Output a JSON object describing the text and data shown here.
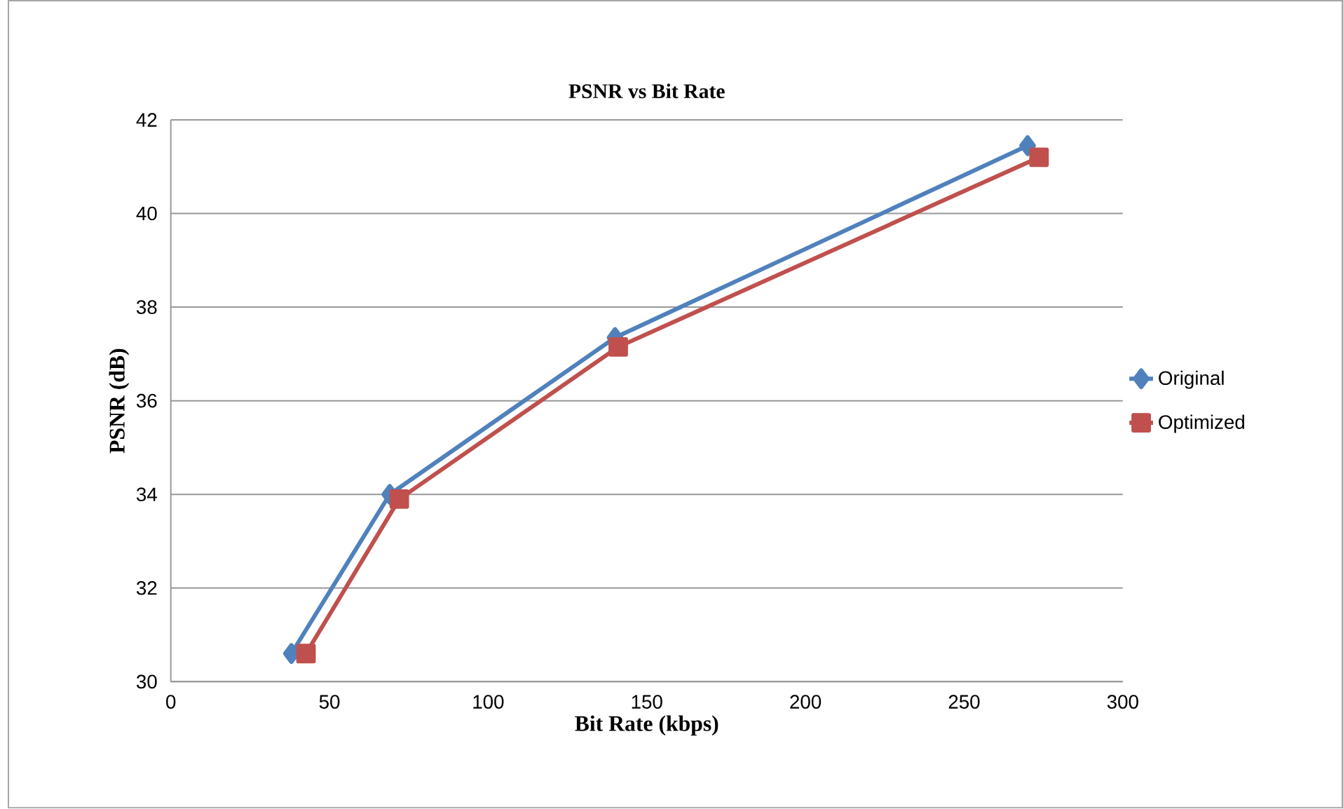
{
  "chart_data": {
    "type": "line",
    "title": "PSNR vs Bit Rate",
    "xlabel": "Bit Rate (kbps)",
    "ylabel": "PSNR (dB)",
    "xlim": [
      0,
      300
    ],
    "xticks": [
      0,
      50,
      100,
      150,
      200,
      250,
      300
    ],
    "ylim": [
      30,
      42
    ],
    "yticks": [
      30,
      32,
      34,
      36,
      38,
      40,
      42
    ],
    "grid": "y",
    "legend": "right",
    "line_style": "solid",
    "series": [
      {
        "name": "Original",
        "color": "#4f81bd",
        "marker": "diamond",
        "x": [
          38,
          69,
          140,
          270
        ],
        "values": [
          30.6,
          34.0,
          37.35,
          41.45
        ]
      },
      {
        "name": "Optimized",
        "color": "#c0504d",
        "marker": "square",
        "x": [
          42.6,
          72,
          141,
          273.6
        ],
        "values": [
          30.6,
          33.9,
          37.15,
          41.2
        ]
      }
    ]
  }
}
